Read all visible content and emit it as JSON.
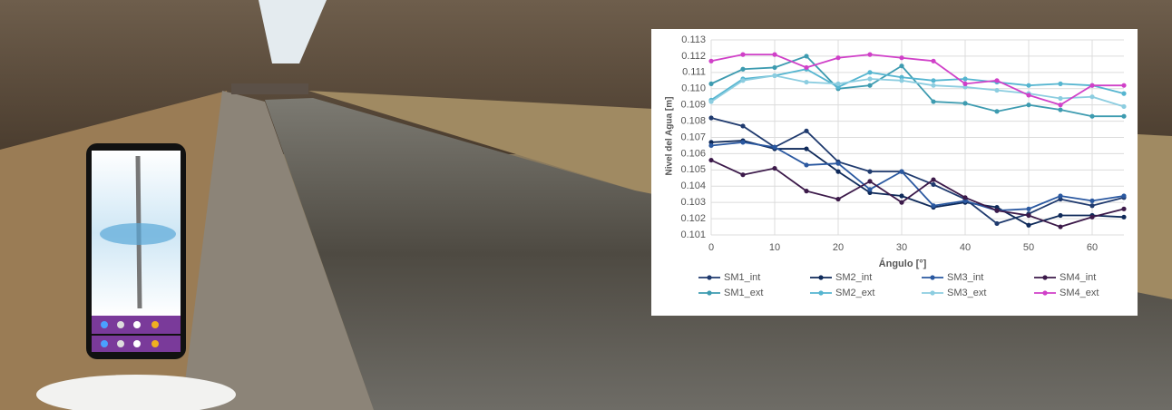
{
  "chart_data": {
    "type": "line",
    "xlabel": "Ángulo [°]",
    "ylabel": "Nivel del Agua [m]",
    "x": [
      0,
      5,
      10,
      15,
      20,
      25,
      30,
      35,
      40,
      45,
      50,
      55,
      60,
      65
    ],
    "xlim": [
      0,
      65
    ],
    "xticks": [
      0,
      10,
      20,
      30,
      40,
      50,
      60
    ],
    "ylim": [
      0.101,
      0.113
    ],
    "yticks": [
      0.101,
      0.102,
      0.103,
      0.104,
      0.105,
      0.106,
      0.107,
      0.108,
      0.109,
      {
        "value": 0.11,
        "label": "0.110"
      },
      0.111,
      0.112,
      0.113
    ],
    "grid": true,
    "legend": "bottom",
    "series": [
      {
        "name": "SM1_int",
        "color": "#1f3a6e",
        "values": [
          0.1082,
          0.1077,
          0.1064,
          0.1074,
          0.1055,
          0.1049,
          0.1049,
          0.1041,
          0.1032,
          0.1017,
          0.1023,
          0.1032,
          0.1028,
          0.1033
        ]
      },
      {
        "name": "SM1_ext",
        "color": "#3d9bb0",
        "values": [
          0.1103,
          0.1112,
          0.1113,
          0.112,
          0.11,
          0.1102,
          0.1114,
          0.1092,
          0.1091,
          0.1086,
          0.109,
          0.1087,
          0.1083,
          0.1083
        ]
      },
      {
        "name": "SM2_int",
        "color": "#0f2a5a",
        "values": [
          0.1067,
          0.1068,
          0.1063,
          0.1063,
          0.1049,
          0.1036,
          0.1034,
          0.1027,
          0.103,
          0.1027,
          0.1016,
          0.1022,
          0.1022,
          0.1021
        ]
      },
      {
        "name": "SM2_ext",
        "color": "#55b5d0",
        "values": [
          0.1093,
          0.1106,
          0.1108,
          0.1112,
          0.1101,
          0.111,
          0.1107,
          0.1105,
          0.1106,
          0.1104,
          0.1102,
          0.1103,
          0.1102,
          0.1097
        ]
      },
      {
        "name": "SM3_int",
        "color": "#2a58a0",
        "values": [
          0.1065,
          0.1067,
          0.1064,
          0.1053,
          0.1054,
          0.1038,
          0.1049,
          0.1028,
          0.1031,
          0.1025,
          0.1026,
          0.1034,
          0.1031,
          0.1034
        ]
      },
      {
        "name": "SM3_ext",
        "color": "#8ccde0",
        "values": [
          0.1092,
          0.1105,
          0.1108,
          0.1104,
          0.1103,
          0.1106,
          0.1105,
          0.1102,
          0.1101,
          0.1099,
          0.1097,
          0.1094,
          0.1095,
          0.1089
        ]
      },
      {
        "name": "SM4_int",
        "color": "#3c1a4a",
        "values": [
          0.1056,
          0.1047,
          0.1051,
          0.1037,
          0.1032,
          0.1043,
          0.103,
          0.1044,
          0.1033,
          0.1025,
          0.1022,
          0.1015,
          0.1021,
          0.1026
        ]
      },
      {
        "name": "SM4_ext",
        "color": "#d040c8",
        "values": [
          0.1117,
          0.1121,
          0.1121,
          0.1113,
          0.1119,
          0.1121,
          0.1119,
          0.1117,
          0.1103,
          0.1105,
          0.1096,
          0.109,
          0.1102,
          0.1102
        ]
      }
    ]
  }
}
